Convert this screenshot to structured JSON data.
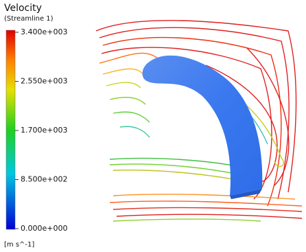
{
  "legend": {
    "title": "Velocity",
    "subtitle": "(Streamline 1)",
    "ticks": [
      "3.400e+003",
      "2.550e+003",
      "1.700e+003",
      "8.500e+002",
      "0.000e+000"
    ],
    "unit": "[m s^-1]"
  }
}
